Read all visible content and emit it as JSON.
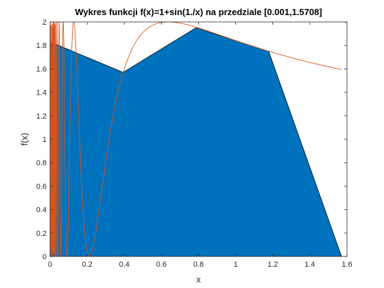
{
  "chart_data": {
    "type": "area",
    "title": "Wykres funkcji f(x)=1+sin(1./x) na przedziale [0.001,1.5708]",
    "xlabel": "x",
    "ylabel": "f(x)",
    "xlim": [
      0,
      1.6
    ],
    "ylim": [
      0,
      2
    ],
    "xticks": [
      "0",
      "0.2",
      "0.4",
      "0.6",
      "0.8",
      "1",
      "1.2",
      "1.4",
      "1.6"
    ],
    "yticks": [
      "0",
      "0.2",
      "0.4",
      "0.6",
      "0.8",
      "1",
      "1.2",
      "1.4",
      "1.6",
      "1.8",
      "2"
    ],
    "grid": false,
    "series": [
      {
        "kind": "filled-polygon",
        "color": "#0072bd",
        "x": [
          0.001,
          0.001,
          0.393,
          0.786,
          1.178,
          1.5708,
          1.5708
        ],
        "y": [
          0,
          1.83,
          1.57,
          1.95,
          1.75,
          0,
          0
        ]
      },
      {
        "kind": "function-line",
        "function": "1+sin(1./x)",
        "color": "#d95319",
        "x_range": [
          0.001,
          1.5708
        ]
      }
    ]
  }
}
